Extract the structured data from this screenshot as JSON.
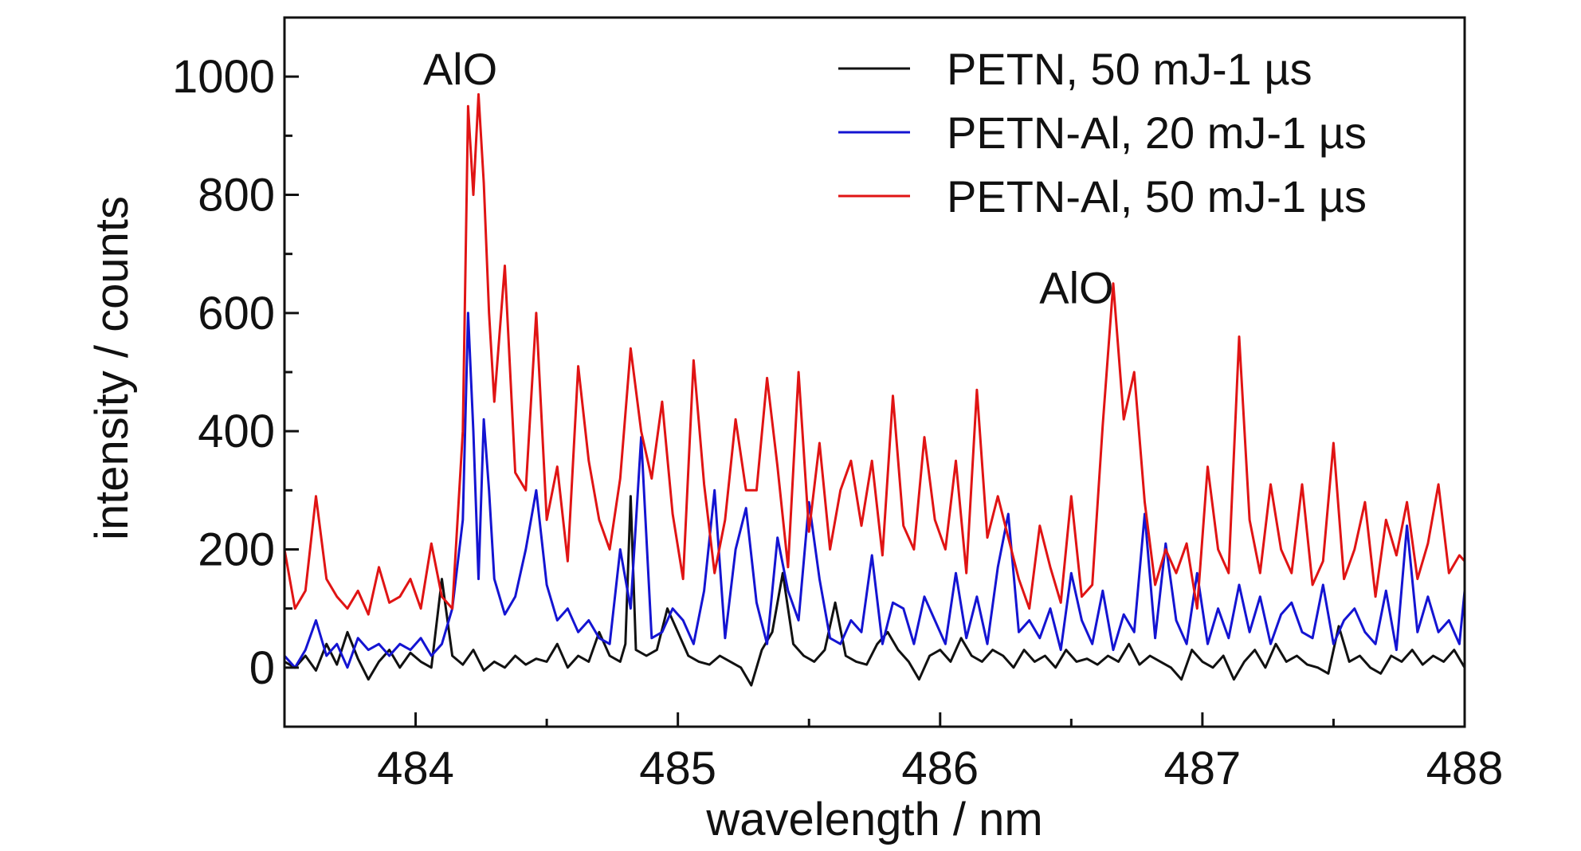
{
  "chart_data": {
    "type": "line",
    "xlabel": "wavelength / nm",
    "ylabel": "intensity / counts",
    "xlim": [
      483.5,
      488
    ],
    "ylim": [
      -100,
      1100
    ],
    "xticks": [
      484,
      485,
      486,
      487,
      488
    ],
    "xtick_labels": [
      "484",
      "485",
      "486",
      "487",
      "488"
    ],
    "yticks": [
      0,
      200,
      400,
      600,
      800,
      1000
    ],
    "ytick_labels": [
      "0",
      "200",
      "400",
      "600",
      "800",
      "1000"
    ],
    "grid": false,
    "legend_position": "top-right",
    "series": [
      {
        "name": "PETN, 50 mJ-1 µs",
        "color": "#111111",
        "x": [
          483.5,
          483.54,
          483.58,
          483.62,
          483.66,
          483.7,
          483.74,
          483.78,
          483.82,
          483.86,
          483.9,
          483.94,
          483.98,
          484.02,
          484.06,
          484.1,
          484.14,
          484.18,
          484.22,
          484.26,
          484.3,
          484.34,
          484.38,
          484.42,
          484.46,
          484.5,
          484.54,
          484.58,
          484.62,
          484.66,
          484.7,
          484.74,
          484.78,
          484.8,
          484.82,
          484.84,
          484.88,
          484.92,
          484.96,
          485.0,
          485.04,
          485.08,
          485.12,
          485.16,
          485.2,
          485.24,
          485.28,
          485.32,
          485.36,
          485.4,
          485.44,
          485.48,
          485.52,
          485.56,
          485.6,
          485.64,
          485.68,
          485.72,
          485.76,
          485.8,
          485.84,
          485.88,
          485.92,
          485.96,
          486.0,
          486.04,
          486.08,
          486.12,
          486.16,
          486.2,
          486.24,
          486.28,
          486.32,
          486.36,
          486.4,
          486.44,
          486.48,
          486.52,
          486.56,
          486.6,
          486.64,
          486.68,
          486.72,
          486.76,
          486.8,
          486.84,
          486.88,
          486.92,
          486.96,
          487.0,
          487.04,
          487.08,
          487.12,
          487.16,
          487.2,
          487.24,
          487.28,
          487.32,
          487.36,
          487.4,
          487.44,
          487.48,
          487.52,
          487.56,
          487.6,
          487.64,
          487.68,
          487.72,
          487.76,
          487.8,
          487.84,
          487.88,
          487.92,
          487.96,
          488.0
        ],
        "y": [
          10,
          0,
          20,
          -5,
          40,
          5,
          60,
          15,
          -20,
          10,
          30,
          0,
          25,
          10,
          0,
          150,
          20,
          5,
          30,
          -5,
          10,
          0,
          20,
          5,
          15,
          10,
          40,
          0,
          20,
          10,
          60,
          20,
          10,
          40,
          290,
          30,
          20,
          30,
          100,
          60,
          20,
          10,
          5,
          20,
          10,
          0,
          -30,
          30,
          60,
          160,
          40,
          20,
          10,
          30,
          110,
          20,
          10,
          5,
          40,
          60,
          30,
          10,
          -20,
          20,
          30,
          10,
          50,
          20,
          10,
          30,
          20,
          0,
          30,
          10,
          20,
          0,
          30,
          10,
          15,
          5,
          20,
          10,
          40,
          5,
          20,
          10,
          0,
          -20,
          30,
          10,
          0,
          20,
          -20,
          10,
          30,
          0,
          40,
          10,
          20,
          5,
          0,
          -10,
          70,
          10,
          20,
          0,
          -10,
          20,
          10,
          30,
          5,
          20,
          10,
          30,
          0
        ]
      },
      {
        "name": "PETN-Al, 20 mJ-1 µs",
        "color": "#1414d2",
        "x": [
          483.5,
          483.54,
          483.58,
          483.62,
          483.66,
          483.7,
          483.74,
          483.78,
          483.82,
          483.86,
          483.9,
          483.94,
          483.98,
          484.02,
          484.06,
          484.1,
          484.14,
          484.18,
          484.2,
          484.22,
          484.24,
          484.26,
          484.28,
          484.3,
          484.34,
          484.38,
          484.42,
          484.46,
          484.5,
          484.54,
          484.58,
          484.62,
          484.66,
          484.7,
          484.74,
          484.78,
          484.82,
          484.86,
          484.9,
          484.94,
          484.98,
          485.02,
          485.06,
          485.1,
          485.14,
          485.18,
          485.22,
          485.26,
          485.3,
          485.34,
          485.38,
          485.42,
          485.46,
          485.5,
          485.54,
          485.58,
          485.62,
          485.66,
          485.7,
          485.74,
          485.78,
          485.82,
          485.86,
          485.9,
          485.94,
          485.98,
          486.02,
          486.06,
          486.1,
          486.14,
          486.18,
          486.22,
          486.26,
          486.3,
          486.34,
          486.38,
          486.42,
          486.46,
          486.5,
          486.54,
          486.58,
          486.62,
          486.66,
          486.7,
          486.74,
          486.78,
          486.82,
          486.86,
          486.9,
          486.94,
          486.98,
          487.02,
          487.06,
          487.1,
          487.14,
          487.18,
          487.22,
          487.26,
          487.3,
          487.34,
          487.38,
          487.42,
          487.46,
          487.5,
          487.54,
          487.58,
          487.62,
          487.66,
          487.7,
          487.74,
          487.78,
          487.82,
          487.86,
          487.9,
          487.94,
          487.98,
          488.0
        ],
        "y": [
          20,
          0,
          30,
          80,
          20,
          40,
          0,
          50,
          30,
          40,
          20,
          40,
          30,
          50,
          20,
          40,
          100,
          250,
          600,
          400,
          150,
          420,
          300,
          150,
          90,
          120,
          200,
          300,
          140,
          80,
          100,
          60,
          80,
          50,
          40,
          200,
          100,
          390,
          50,
          60,
          100,
          80,
          40,
          130,
          300,
          50,
          200,
          270,
          110,
          40,
          220,
          130,
          80,
          280,
          150,
          50,
          40,
          80,
          60,
          190,
          40,
          110,
          100,
          40,
          120,
          80,
          40,
          160,
          50,
          120,
          40,
          170,
          260,
          60,
          80,
          50,
          100,
          30,
          160,
          80,
          40,
          130,
          30,
          90,
          60,
          260,
          50,
          210,
          80,
          40,
          160,
          40,
          100,
          50,
          140,
          60,
          120,
          40,
          90,
          110,
          60,
          50,
          140,
          40,
          80,
          100,
          60,
          40,
          130,
          30,
          240,
          60,
          120,
          60,
          80,
          40,
          130
        ]
      },
      {
        "name": "PETN-Al, 50 mJ-1 µs",
        "color": "#e01414",
        "x": [
          483.5,
          483.54,
          483.58,
          483.62,
          483.66,
          483.7,
          483.74,
          483.78,
          483.82,
          483.86,
          483.9,
          483.94,
          483.98,
          484.02,
          484.06,
          484.1,
          484.14,
          484.18,
          484.2,
          484.22,
          484.24,
          484.26,
          484.28,
          484.3,
          484.34,
          484.38,
          484.42,
          484.46,
          484.5,
          484.54,
          484.58,
          484.62,
          484.66,
          484.7,
          484.74,
          484.78,
          484.82,
          484.86,
          484.9,
          484.94,
          484.98,
          485.02,
          485.06,
          485.1,
          485.14,
          485.18,
          485.22,
          485.26,
          485.3,
          485.34,
          485.38,
          485.42,
          485.46,
          485.5,
          485.54,
          485.58,
          485.62,
          485.66,
          485.7,
          485.74,
          485.78,
          485.82,
          485.86,
          485.9,
          485.94,
          485.98,
          486.02,
          486.06,
          486.1,
          486.14,
          486.18,
          486.22,
          486.26,
          486.3,
          486.34,
          486.38,
          486.42,
          486.46,
          486.5,
          486.54,
          486.58,
          486.62,
          486.66,
          486.7,
          486.74,
          486.78,
          486.82,
          486.86,
          486.9,
          486.94,
          486.98,
          487.02,
          487.06,
          487.1,
          487.14,
          487.18,
          487.22,
          487.26,
          487.3,
          487.34,
          487.38,
          487.42,
          487.46,
          487.5,
          487.54,
          487.58,
          487.62,
          487.66,
          487.7,
          487.74,
          487.78,
          487.82,
          487.86,
          487.9,
          487.94,
          487.98,
          488.0
        ],
        "y": [
          200,
          100,
          130,
          290,
          150,
          120,
          100,
          130,
          90,
          170,
          110,
          120,
          150,
          100,
          210,
          120,
          100,
          400,
          950,
          800,
          970,
          820,
          600,
          450,
          680,
          330,
          300,
          600,
          250,
          340,
          180,
          510,
          350,
          250,
          200,
          320,
          540,
          400,
          320,
          450,
          260,
          150,
          520,
          310,
          160,
          250,
          420,
          300,
          300,
          490,
          340,
          170,
          500,
          230,
          380,
          200,
          300,
          350,
          240,
          350,
          190,
          460,
          240,
          200,
          390,
          250,
          200,
          350,
          160,
          470,
          220,
          290,
          220,
          150,
          100,
          240,
          170,
          110,
          290,
          120,
          140,
          410,
          650,
          420,
          500,
          280,
          140,
          200,
          160,
          210,
          100,
          340,
          200,
          160,
          560,
          250,
          160,
          310,
          200,
          160,
          310,
          140,
          180,
          380,
          150,
          200,
          280,
          120,
          250,
          190,
          280,
          150,
          210,
          310,
          160,
          190,
          180
        ]
      }
    ],
    "annotations": [
      {
        "text": "AlO",
        "x": 484.17,
        "y": 1000
      },
      {
        "text": "AlO",
        "x": 486.52,
        "y": 630
      }
    ]
  }
}
